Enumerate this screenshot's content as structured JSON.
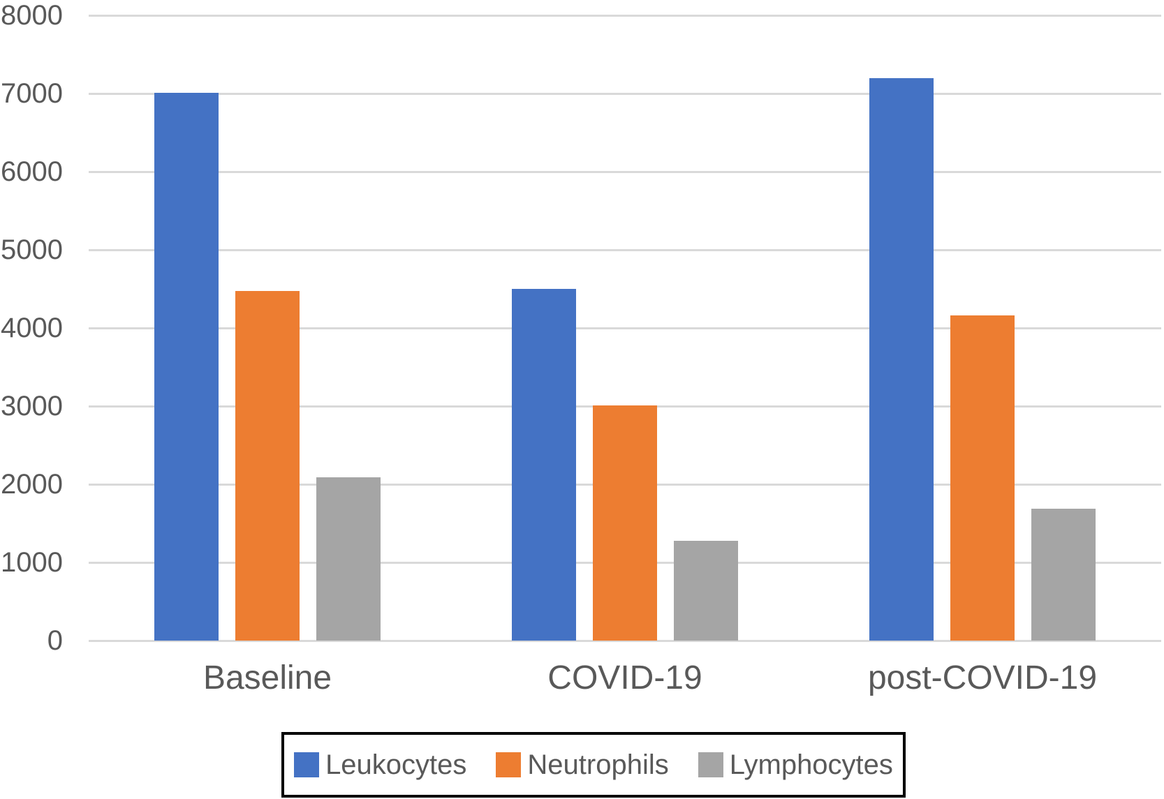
{
  "chart_data": {
    "type": "bar",
    "title": "",
    "xlabel": "",
    "ylabel": "",
    "categories": [
      "Baseline",
      "COVID-19",
      "post-COVID-19"
    ],
    "series": [
      {
        "name": "Leukocytes",
        "color": "#4472C4",
        "values": [
          7010,
          4500,
          7200
        ]
      },
      {
        "name": "Neutrophils",
        "color": "#ED7D31",
        "values": [
          4470,
          3010,
          4160
        ]
      },
      {
        "name": "Lymphocytes",
        "color": "#A5A5A5",
        "values": [
          2090,
          1280,
          1690
        ]
      }
    ],
    "ylim": [
      0,
      8000
    ],
    "ytick_step": 1000,
    "ytick_labels": [
      "0",
      "1000",
      "2000",
      "3000",
      "4000",
      "5000",
      "6000",
      "7000",
      "8000"
    ],
    "grid": true,
    "legend_position": "bottom"
  },
  "colors": {
    "gridline": "#D9D9D9",
    "axis_text": "#595959",
    "legend_border": "#000000",
    "background": "#FFFFFF"
  }
}
